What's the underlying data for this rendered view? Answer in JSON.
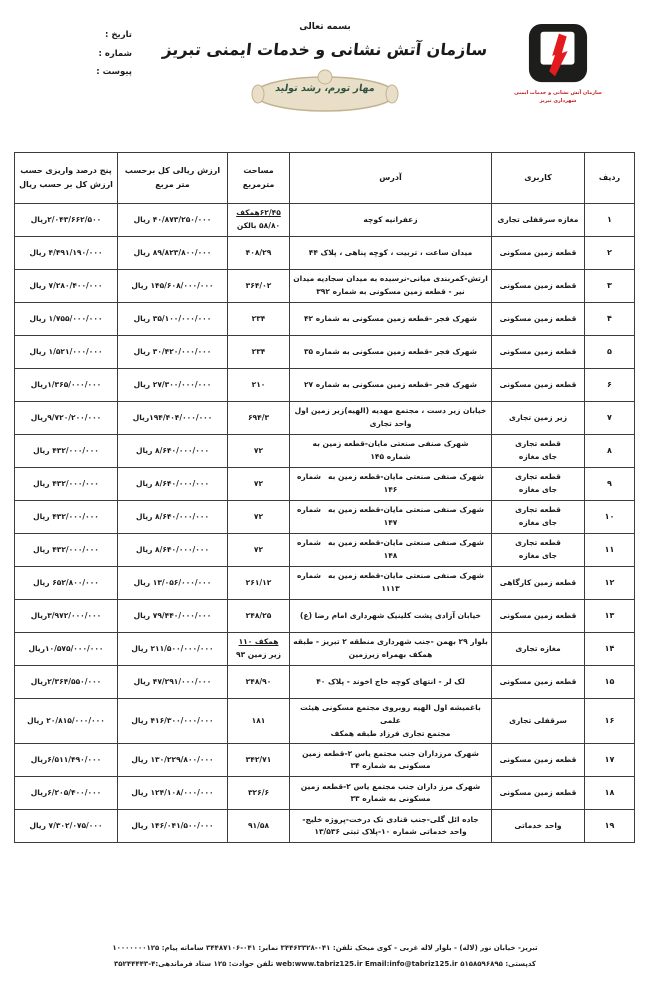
{
  "meta": {
    "date_label": "تاریخ :",
    "number_label": "شماره :",
    "attachment_label": "پیوست :"
  },
  "header": {
    "bismillah": "بسمه تعالی",
    "org_title": "سازمان آتش نشانی و خدمات ایمنی تبریز",
    "slogan": "مهار تورم، رشد تولید",
    "logo_caption_line1": "سازمان آتش نشانی و خدمات ایمنی",
    "logo_caption_line2": "شهرداری تبریز",
    "logo_black": "#1d1d1b",
    "logo_red": "#e41b1e",
    "seal_fill": "#e9dfc8",
    "seal_border": "#c2b291"
  },
  "table": {
    "headers": [
      "ردیف",
      "کاربری",
      "آدرس",
      "مساحت مترمربع",
      "ارزش ریالی کل برحسب متر مربع",
      "پنج درصد واریزی حسب ارزش کل بر حسب ریال"
    ],
    "rows": [
      {
        "no": "۱",
        "usage": [
          "مغازه سرقفلی تجاری"
        ],
        "address": [
          {
            "t": "زعفرانیه کوچه"
          }
        ],
        "area": [
          {
            "t": "۶۲/۴۵همکف",
            "u": true
          },
          {
            "t": "۵۸/۸۰ بالکن"
          }
        ],
        "value": "۴۰/۸۷۳/۲۵۰/۰۰۰ ریال",
        "deposit": "۲/۰۴۳/۶۶۲/۵۰۰ریال"
      },
      {
        "no": "۲",
        "usage": [
          "قطعه زمین مسکونی"
        ],
        "address": [
          {
            "t": "میدان ساعت ، تربیت ، کوچه پناهی ، پلاک ۴۴"
          }
        ],
        "area": [
          {
            "t": "۴۰۸/۲۹"
          }
        ],
        "value": "۸۹/۸۲۳/۸۰۰/۰۰۰ ریال",
        "deposit": "۴/۴۹۱/۱۹۰/۰۰۰ ریال"
      },
      {
        "no": "۳",
        "usage": [
          "قطعه زمین مسکونی"
        ],
        "address": [
          {
            "t": "ارتش-کمربندی میانی-نرسیده به میدان سجادیه میدان"
          },
          {
            "t": "نیر - قطعه زمین مسکونی به شماره ۳۹۲"
          }
        ],
        "area": [
          {
            "t": "۳۶۴/۰۲"
          }
        ],
        "value": "۱۴۵/۶۰۸/۰۰۰/۰۰۰ ریال",
        "deposit": "۷/۲۸۰/۴۰۰/۰۰۰ ریال"
      },
      {
        "no": "۴",
        "usage": [
          "قطعه زمین مسکونی"
        ],
        "address": [
          {
            "t": "شهرک فجر -قطعه زمین مسکونی به شماره ۴۲"
          }
        ],
        "area": [
          {
            "t": "۲۳۴"
          }
        ],
        "value": "۳۵/۱۰۰/۰۰۰/۰۰۰ ریال",
        "deposit": "۱/۷۵۵/۰۰۰/۰۰۰ ریال"
      },
      {
        "no": "۵",
        "usage": [
          "قطعه زمین مسکونی"
        ],
        "address": [
          {
            "t": "شهرک فجر -قطعه زمین مسکونی به شماره ۳۵"
          }
        ],
        "area": [
          {
            "t": "۲۳۴"
          }
        ],
        "value": "۳۰/۴۲۰/۰۰۰/۰۰۰ ریال",
        "deposit": "۱/۵۲۱/۰۰۰/۰۰۰ ریال"
      },
      {
        "no": "۶",
        "usage": [
          "قطعه زمین مسکونی"
        ],
        "address": [
          {
            "t": "شهرک فجر -قطعه زمین مسکونی به شماره ۲۷"
          }
        ],
        "area": [
          {
            "t": "۲۱۰"
          }
        ],
        "value": "۲۷/۳۰۰/۰۰۰/۰۰۰ ریال",
        "deposit": "۱/۳۶۵/۰۰۰/۰۰۰ریال"
      },
      {
        "no": "۷",
        "usage": [
          "زیر زمین تجاری"
        ],
        "address": [
          {
            "t": "خیابان زیر دست ، مجتمع مهدیه (الهیه)زیر زمین اول"
          },
          {
            "t": "واحد تجاری"
          }
        ],
        "area": [
          {
            "t": "۶۹۴/۳"
          }
        ],
        "value": "۱۹۴/۴۰۴/۰۰۰/۰۰۰ریال",
        "deposit": "۹/۷۲۰/۲۰۰/۰۰۰ریال"
      },
      {
        "no": "۸",
        "usage": [
          "قطعه تجاری",
          "جای مغازه"
        ],
        "address": [
          {
            "t": "شهرک صنفی صنعتی مایان-قطعه زمین به"
          },
          {
            "t": "شماره ۱۴۵"
          }
        ],
        "area": [
          {
            "t": "۷۲"
          }
        ],
        "value": "۸/۶۴۰/۰۰۰/۰۰۰ ریال",
        "deposit": "۴۳۲/۰۰۰/۰۰۰ ریال"
      },
      {
        "no": "۹",
        "usage": [
          "قطعه تجاری",
          "جای مغازه"
        ],
        "address": [
          {
            "t": "شهرک صنفی صنعتی مایان-قطعه زمین به",
            "d": "شماره"
          },
          {
            "t": "۱۴۶"
          }
        ],
        "area": [
          {
            "t": "۷۲"
          }
        ],
        "value": "۸/۶۴۰/۰۰۰/۰۰۰ ریال",
        "deposit": "۴۳۲/۰۰۰/۰۰۰ ریال"
      },
      {
        "no": "۱۰",
        "usage": [
          "قطعه تجاری",
          "جای مغازه"
        ],
        "address": [
          {
            "t": "شهرک صنفی صنعتی مایان-قطعه زمین به",
            "d": "شماره"
          },
          {
            "t": "۱۴۷"
          }
        ],
        "area": [
          {
            "t": "۷۲"
          }
        ],
        "value": "۸/۶۴۰/۰۰۰/۰۰۰ ریال",
        "deposit": "۴۳۲/۰۰۰/۰۰۰ ریال"
      },
      {
        "no": "۱۱",
        "usage": [
          "قطعه تجاری",
          "جای مغازه"
        ],
        "address": [
          {
            "t": "شهرک صنفی صنعتی مایان-قطعه زمین به",
            "d": "شماره"
          },
          {
            "t": "۱۴۸"
          }
        ],
        "area": [
          {
            "t": "۷۲"
          }
        ],
        "value": "۸/۶۴۰/۰۰۰/۰۰۰ ریال",
        "deposit": "۴۳۲/۰۰۰/۰۰۰ ریال"
      },
      {
        "no": "۱۲",
        "usage": [
          "قطعه زمین کارگاهی"
        ],
        "address": [
          {
            "t": "شهرک صنفی صنعتی مایان-قطعه زمین به",
            "d": "شماره"
          },
          {
            "t": "۱۱۱۳"
          }
        ],
        "area": [
          {
            "t": "۲۶۱/۱۲"
          }
        ],
        "value": "۱۳/۰۵۶/۰۰۰/۰۰۰ ریال",
        "deposit": "۶۵۲/۸۰۰/۰۰۰ ریال"
      },
      {
        "no": "۱۳",
        "usage": [
          "قطعه زمین مسکونی"
        ],
        "address": [
          {
            "t": "خیابان آزادی پشت کلینیک شهرداری امام رضا (ع)"
          }
        ],
        "area": [
          {
            "t": "۲۴۸/۲۵"
          }
        ],
        "value": "۷۹/۴۴۰/۰۰۰/۰۰۰ ریال",
        "deposit": "۳/۹۷۲/۰۰۰/۰۰۰ریال"
      },
      {
        "no": "۱۴",
        "usage": [
          "مغازه تجاری"
        ],
        "address": [
          {
            "t": "بلوار ۲۹ بهمن -جنب شهرداری منطقه ۲ تبریز - طبقه"
          },
          {
            "t": "همکف بهمراه زیرزمین"
          }
        ],
        "area": [
          {
            "t": "همکف ۱۱۰",
            "u": true
          },
          {
            "t": "زیر زمین ۹۳"
          }
        ],
        "value": "۲۱۱/۵۰۰/۰۰۰/۰۰۰ ریال",
        "deposit": "۱۰/۵۷۵/۰۰۰/۰۰۰ریال"
      },
      {
        "no": "۱۵",
        "usage": [
          "قطعه زمین مسکونی"
        ],
        "address": [
          {
            "t": "لک لر - انتهای کوچه حاج اخوند - پلاک ۴۰"
          }
        ],
        "area": [
          {
            "t": "۲۴۸/۹۰"
          }
        ],
        "value": "۴۷/۲۹۱/۰۰۰/۰۰۰ ریال",
        "deposit": "۲/۳۶۴/۵۵۰/۰۰۰ریال"
      },
      {
        "no": "۱۶",
        "usage": [
          "سرقفلی تجاری"
        ],
        "address": [
          {
            "t": "باغمیشه اول الهیه روبروی مجتمع مسکونی هیئت علمی"
          },
          {
            "t": "مجتمع تجاری فرزاد طبقه همکف"
          }
        ],
        "area": [
          {
            "t": "۱۸۱"
          }
        ],
        "value": "۴۱۶/۳۰۰/۰۰۰/۰۰۰ ریال",
        "deposit": "۲۰/۸۱۵/۰۰۰/۰۰۰ ریال"
      },
      {
        "no": "۱۷",
        "usage": [
          "قطعه زمین مسکونی"
        ],
        "address": [
          {
            "t": "شهرک مرزداران جنب مجتمع یاس ۲-قطعه زمین"
          },
          {
            "t": "مسکونی به شماره ۳۴"
          }
        ],
        "area": [
          {
            "t": "۳۴۲/۷۱"
          }
        ],
        "value": "۱۳۰/۲۲۹/۸۰۰/۰۰۰ ریال",
        "deposit": "۶/۵۱۱/۴۹۰/۰۰۰ریال"
      },
      {
        "no": "۱۸",
        "usage": [
          "قطعه زمین مسکونی"
        ],
        "address": [
          {
            "t": "شهرک مرز داران جنب مجتمع یاس ۲-قطعه زمین"
          },
          {
            "t": "مسکونی به شماره ۳۳"
          }
        ],
        "area": [
          {
            "t": "۳۲۶/۶"
          }
        ],
        "value": "۱۲۴/۱۰۸/۰۰۰/۰۰۰ ریال",
        "deposit": "۶/۲۰۵/۴۰۰/۰۰۰ریال"
      },
      {
        "no": "۱۹",
        "usage": [
          "واحد خدماتی"
        ],
        "address": [
          {
            "t": "جاده ائل گلی-جنب قنادی تک درخت-پروژه خلیج-"
          },
          {
            "t": "واحد خدماتی شماره ۱۰-پلاک ثبتی ۱۳/۵۳۶"
          }
        ],
        "area": [
          {
            "t": "۹۱/۵۸"
          }
        ],
        "value": "۱۴۶/۰۴۱/۵۰۰/۰۰۰ ریال",
        "deposit": "۷/۳۰۲/۰۷۵/۰۰۰ ریال"
      }
    ]
  },
  "footer": {
    "line1": "تبریز- خیابان نور (لاله) - بلوار لاله غربی - کوی میخک تلفن: ۰۴۱-۳۴۴۶۳۳۲۸ نمابر: ۰۴۱-۳۴۴۸۷۱۰۶ سامانه پیام: ۱۰۰۰۰۰۰۰۱۲۵",
    "line2": "کدپستی: ۵۱۵۸۵۹۶۸۹۵   web:www.tabriz125.ir Email:info@tabriz125.ir   تلفن حوادث: ۱۲۵ ستاد فرماندهی:۴-۳۵۲۴۴۴۴۳"
  }
}
